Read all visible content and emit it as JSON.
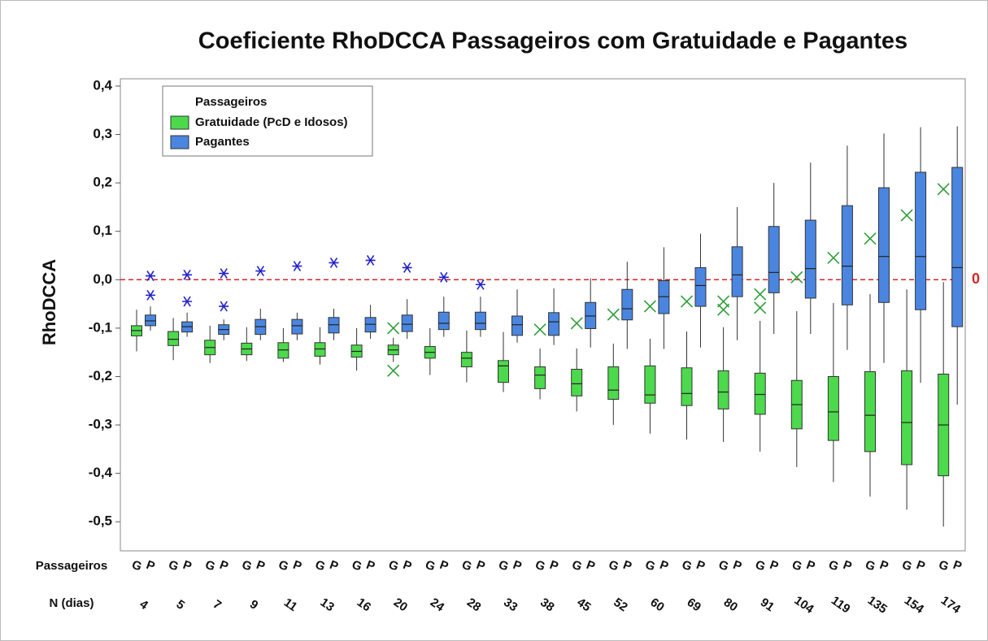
{
  "chart_data": {
    "type": "box",
    "title": "Coeficiente RhoDCCA Passageiros com Gratuidade e Pagantes",
    "ylabel": "RhoDCCA",
    "group_label": "Passageiros",
    "category_label": "N (dias)",
    "subgroups": [
      "G",
      "P"
    ],
    "categories": [
      "4",
      "5",
      "7",
      "9",
      "11",
      "13",
      "16",
      "20",
      "24",
      "28",
      "33",
      "38",
      "45",
      "52",
      "60",
      "69",
      "80",
      "91",
      "104",
      "119",
      "135",
      "154",
      "174"
    ],
    "legend": "top-left",
    "reference_line": 0,
    "reference_color": "#d62728",
    "ylim": [
      -0.56,
      0.415
    ],
    "yticks": [
      {
        "value": 0.4,
        "label": "0,4"
      },
      {
        "value": 0.3,
        "label": "0,3"
      },
      {
        "value": 0.2,
        "label": "0,2"
      },
      {
        "value": 0.1,
        "label": "0,1"
      },
      {
        "value": 0,
        "label": "0,0"
      },
      {
        "value": -0.1,
        "label": "-0,1"
      },
      {
        "value": -0.2,
        "label": "-0,2"
      },
      {
        "value": -0.3,
        "label": "-0,3"
      },
      {
        "value": -0.4,
        "label": "-0,4"
      },
      {
        "value": -0.5,
        "label": "-0,5"
      }
    ],
    "series": [
      {
        "name": "Gratuidade (PcD e Idosos)",
        "color": "#4cd94c",
        "outlier_color": "#2e9e3a",
        "whisker_low": [
          -0.148,
          -0.166,
          -0.172,
          -0.168,
          -0.17,
          -0.175,
          -0.188,
          -0.17,
          -0.197,
          -0.212,
          -0.232,
          -0.247,
          -0.272,
          -0.3,
          -0.318,
          -0.33,
          -0.335,
          -0.355,
          -0.387,
          -0.418,
          -0.448,
          -0.475,
          -0.51
        ],
        "q1": [
          -0.116,
          -0.136,
          -0.155,
          -0.155,
          -0.162,
          -0.158,
          -0.16,
          -0.155,
          -0.162,
          -0.18,
          -0.212,
          -0.225,
          -0.24,
          -0.247,
          -0.255,
          -0.26,
          -0.267,
          -0.278,
          -0.308,
          -0.332,
          -0.355,
          -0.382,
          -0.405
        ],
        "median": [
          -0.105,
          -0.123,
          -0.14,
          -0.143,
          -0.145,
          -0.143,
          -0.148,
          -0.145,
          -0.15,
          -0.162,
          -0.178,
          -0.197,
          -0.215,
          -0.228,
          -0.238,
          -0.235,
          -0.232,
          -0.237,
          -0.258,
          -0.273,
          -0.28,
          -0.295,
          -0.3
        ],
        "q3": [
          -0.095,
          -0.107,
          -0.125,
          -0.131,
          -0.13,
          -0.13,
          -0.135,
          -0.135,
          -0.138,
          -0.15,
          -0.167,
          -0.18,
          -0.185,
          -0.18,
          -0.178,
          -0.182,
          -0.188,
          -0.193,
          -0.208,
          -0.2,
          -0.19,
          -0.188,
          -0.195
        ],
        "whisker_high": [
          -0.062,
          -0.079,
          -0.095,
          -0.098,
          -0.1,
          -0.098,
          -0.1,
          -0.12,
          -0.1,
          -0.105,
          -0.108,
          -0.142,
          -0.142,
          -0.132,
          -0.122,
          -0.107,
          -0.098,
          -0.085,
          -0.065,
          -0.048,
          -0.03,
          -0.02,
          -0.005
        ],
        "outliers": [
          [],
          [],
          [],
          [],
          [],
          [],
          [],
          [
            -0.1,
            -0.188
          ],
          [],
          [],
          [],
          [
            -0.103
          ],
          [
            -0.09
          ],
          [
            -0.072
          ],
          [
            -0.055
          ],
          [
            -0.045
          ],
          [
            -0.045,
            -0.062
          ],
          [
            -0.03,
            -0.058
          ],
          [
            0.005
          ],
          [
            0.045
          ],
          [
            0.085
          ],
          [
            0.133
          ],
          [
            0.187
          ]
        ]
      },
      {
        "name": "Pagantes",
        "color": "#4a86e0",
        "outlier_color": "#2222cc",
        "whisker_low": [
          -0.105,
          -0.118,
          -0.125,
          -0.125,
          -0.125,
          -0.125,
          -0.122,
          -0.122,
          -0.118,
          -0.118,
          -0.13,
          -0.135,
          -0.14,
          -0.143,
          -0.143,
          -0.14,
          -0.125,
          -0.112,
          -0.112,
          -0.145,
          -0.172,
          -0.213,
          -0.258
        ],
        "q1": [
          -0.095,
          -0.108,
          -0.113,
          -0.113,
          -0.112,
          -0.11,
          -0.108,
          -0.107,
          -0.103,
          -0.103,
          -0.115,
          -0.115,
          -0.101,
          -0.083,
          -0.07,
          -0.055,
          -0.035,
          -0.027,
          -0.038,
          -0.052,
          -0.047,
          -0.062,
          -0.097
        ],
        "median": [
          -0.085,
          -0.097,
          -0.103,
          -0.097,
          -0.095,
          -0.093,
          -0.092,
          -0.092,
          -0.09,
          -0.09,
          -0.093,
          -0.087,
          -0.075,
          -0.06,
          -0.035,
          -0.012,
          0.01,
          0.015,
          0.023,
          0.028,
          0.048,
          0.048,
          0.025
        ],
        "q3": [
          -0.073,
          -0.087,
          -0.093,
          -0.082,
          -0.082,
          -0.078,
          -0.078,
          -0.073,
          -0.067,
          -0.067,
          -0.075,
          -0.068,
          -0.047,
          -0.02,
          -0.002,
          0.025,
          0.068,
          0.11,
          0.123,
          0.153,
          0.19,
          0.222,
          0.232
        ],
        "whisker_high": [
          -0.055,
          -0.068,
          -0.082,
          -0.06,
          -0.068,
          -0.06,
          -0.052,
          -0.04,
          -0.035,
          -0.035,
          -0.02,
          -0.018,
          0.003,
          0.037,
          0.067,
          0.095,
          0.15,
          0.2,
          0.242,
          0.277,
          0.302,
          0.315,
          0.317
        ],
        "outliers": [
          [
            0.008,
            -0.032
          ],
          [
            0.01,
            -0.045
          ],
          [
            0.013,
            -0.055
          ],
          [
            0.018
          ],
          [
            0.028
          ],
          [
            0.035
          ],
          [
            0.04
          ],
          [
            0.025
          ],
          [
            0.005
          ],
          [
            -0.01
          ],
          [],
          [],
          [],
          [],
          [],
          [],
          [],
          [],
          [],
          [],
          [],
          [],
          []
        ]
      }
    ]
  }
}
